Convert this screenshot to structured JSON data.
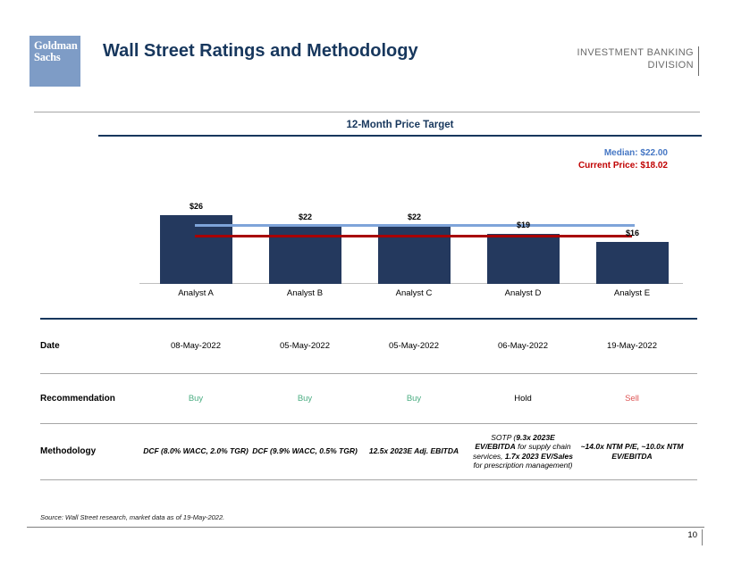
{
  "header": {
    "logo_line1": "Goldman",
    "logo_line2": "Sachs",
    "title": "Wall Street Ratings and Methodology",
    "division_line1": "INVESTMENT BANKING",
    "division_line2": "DIVISION"
  },
  "chart_data": {
    "type": "bar",
    "title": "12-Month Price Target",
    "categories": [
      "Analyst A",
      "Analyst B",
      "Analyst C",
      "Analyst D",
      "Analyst E"
    ],
    "values": [
      26,
      22,
      22,
      19,
      16
    ],
    "bar_labels": [
      "$26",
      "$22",
      "$22",
      "$19",
      "$16"
    ],
    "median_value": 22.0,
    "current_price": 18.02,
    "median_label": "Median: $22.00",
    "current_price_label": "Current Price: $18.02",
    "legend_position": "none",
    "grid": false,
    "bar_color": "#24395E",
    "median_line_color": "#7EA4D9",
    "current_line_color": "#A80000"
  },
  "table": {
    "rows": [
      {
        "label": "Date",
        "values": [
          "08-May-2022",
          "05-May-2022",
          "05-May-2022",
          "06-May-2022",
          "19-May-2022"
        ]
      },
      {
        "label": "Recommendation",
        "values": [
          "Buy",
          "Buy",
          "Buy",
          "Hold",
          "Sell"
        ]
      },
      {
        "label": "Methodology",
        "segments": [
          [
            {
              "t": "DCF (8.0% WACC, 2.0% TGR)",
              "b": true
            }
          ],
          [
            {
              "t": "DCF (9.9% WACC, 0.5% TGR)",
              "b": true
            }
          ],
          [
            {
              "t": "12.5x 2023E Adj. EBITDA",
              "b": true
            }
          ],
          [
            {
              "t": "SOTP (",
              "b": false
            },
            {
              "t": "9.3x 2023E EV/EBITDA",
              "b": true
            },
            {
              "t": " for supply chain services, ",
              "b": false
            },
            {
              "t": "1.7x 2023 EV/Sales",
              "b": true
            },
            {
              "t": " for prescription management)",
              "b": false
            }
          ],
          [
            {
              "t": "~14.0x NTM P/E, ~10.0x NTM EV/EBITDA",
              "b": true
            }
          ]
        ]
      }
    ],
    "recommendation_colors": {
      "Buy": "#4BAD82",
      "Hold": "#000000",
      "Sell": "#DE5555"
    }
  },
  "footer": {
    "source": "Source: Wall Street research, market data as of 19-May-2022.",
    "page_number": "10"
  }
}
